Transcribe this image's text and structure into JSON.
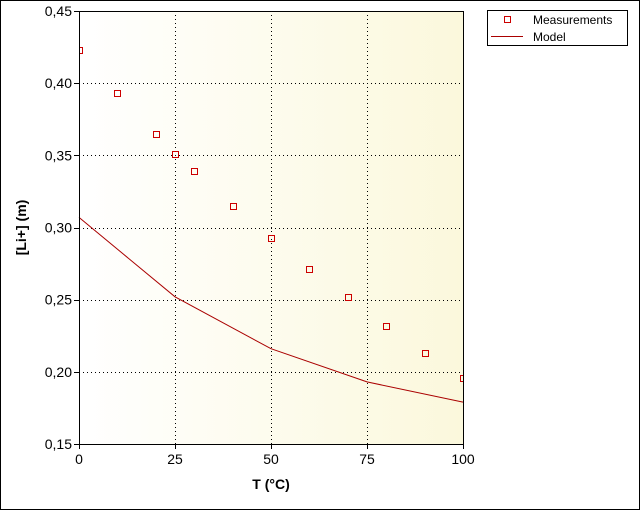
{
  "chart_data": {
    "type": "scatter",
    "xlabel": "T (°C)",
    "ylabel": "[Li+] (m)",
    "xlim": [
      0,
      100
    ],
    "ylim": [
      0.15,
      0.45
    ],
    "x_ticks": [
      0,
      25,
      50,
      75,
      100
    ],
    "x_tick_labels": [
      "0",
      "25",
      "50",
      "75",
      "100"
    ],
    "y_ticks": [
      0.15,
      0.2,
      0.25,
      0.3,
      0.35,
      0.4,
      0.45
    ],
    "y_tick_labels": [
      "0,15",
      "0,20",
      "0,25",
      "0,30",
      "0,35",
      "0,40",
      "0,45"
    ],
    "grid": true,
    "legend_position": "outside-top-right",
    "series": [
      {
        "name": "Measurements",
        "kind": "scatter",
        "marker": "square",
        "color": "#cc0000",
        "x": [
          0,
          10,
          20,
          25,
          30,
          40,
          50,
          60,
          70,
          80,
          90,
          100
        ],
        "y": [
          0.423,
          0.393,
          0.365,
          0.351,
          0.339,
          0.315,
          0.293,
          0.271,
          0.252,
          0.232,
          0.213,
          0.196
        ]
      },
      {
        "name": "Model",
        "kind": "line",
        "color": "#aa0000",
        "x": [
          0,
          25,
          50,
          75,
          100
        ],
        "y": [
          0.307,
          0.252,
          0.216,
          0.193,
          0.179
        ]
      }
    ],
    "plot_background": "#fffff0"
  }
}
